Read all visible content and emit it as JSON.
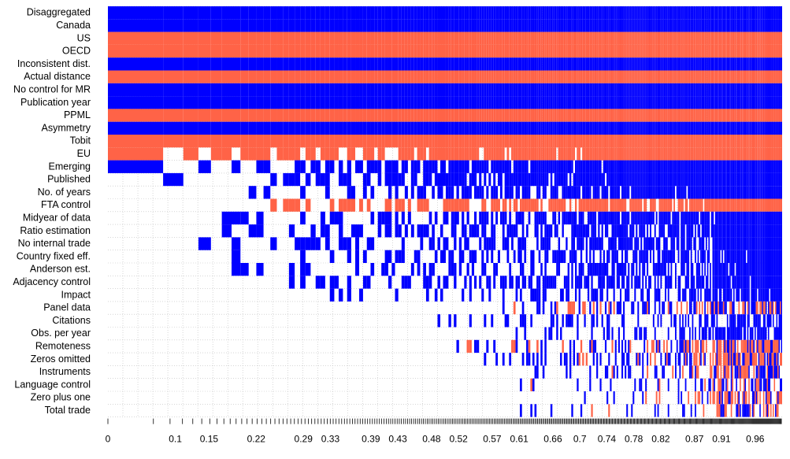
{
  "chart_data": {
    "type": "heatmap",
    "variables": [
      "Disaggregated",
      "Canada",
      "US",
      "OECD",
      "Inconsistent dist.",
      "Actual distance",
      "No control for MR",
      "Publication year",
      "PPML",
      "Asymmetry",
      "Tobit",
      "EU",
      "Emerging",
      "Published",
      "No. of years",
      "FTA control",
      "Midyear of data",
      "Ratio estimation",
      "No internal trade",
      "Country fixed eff.",
      "Anderson est.",
      "Adjacency control",
      "Impact",
      "Panel data",
      "Citations",
      "Obs. per year",
      "Remoteness",
      "Zeros omitted",
      "Instruments",
      "Language control",
      "Zero plus one",
      "Total trade"
    ],
    "x_tick_labels": [
      "0",
      "0.1",
      "0.15",
      "0.22",
      "0.29",
      "0.33",
      "0.39",
      "0.43",
      "0.48",
      "0.52",
      "0.57",
      "0.61",
      "0.66",
      "0.7",
      "0.74",
      "0.78",
      "0.82",
      "0.87",
      "0.91",
      "0.96"
    ],
    "x_range": [
      0,
      1
    ],
    "colors": {
      "positive": "#0000ff",
      "negative": "#ff6347",
      "excluded": "#ffffff",
      "grid": "#bdbdbd",
      "text": "#000000"
    },
    "variable_signs": {
      "US": "negative",
      "OECD": "negative",
      "Actual distance": "negative",
      "PPML": "negative",
      "Tobit": "negative",
      "EU": "negative",
      "FTA control": "negative"
    },
    "inclusion_start_pip": [
      0,
      0,
      0,
      0,
      0,
      0,
      0,
      0,
      0,
      0,
      0,
      0,
      0,
      0,
      0.19,
      0.19,
      0.1,
      0.15,
      0.1,
      0.19,
      0.19,
      0.19,
      0.33,
      0.57,
      0.43,
      0.57,
      0.52,
      0.52,
      0.61,
      0.61,
      0.7,
      0.61
    ],
    "inclusion_density": [
      1,
      1,
      1,
      1,
      1,
      1,
      1,
      1,
      1,
      1,
      1,
      0.99,
      0.96,
      0.95,
      0.8,
      0.82,
      0.75,
      0.7,
      0.65,
      0.62,
      0.6,
      0.58,
      0.55,
      0.45,
      0.35,
      0.35,
      0.5,
      0.5,
      0.45,
      0.3,
      0.35,
      0.25
    ],
    "mixed_sign_from_pip": 0.87,
    "mixed_sign_rows": [
      "Panel data",
      "Remoteness",
      "Zeros omitted",
      "Instruments",
      "Language control",
      "Zero plus one",
      "Total trade"
    ],
    "grid": true,
    "legend": "none"
  }
}
